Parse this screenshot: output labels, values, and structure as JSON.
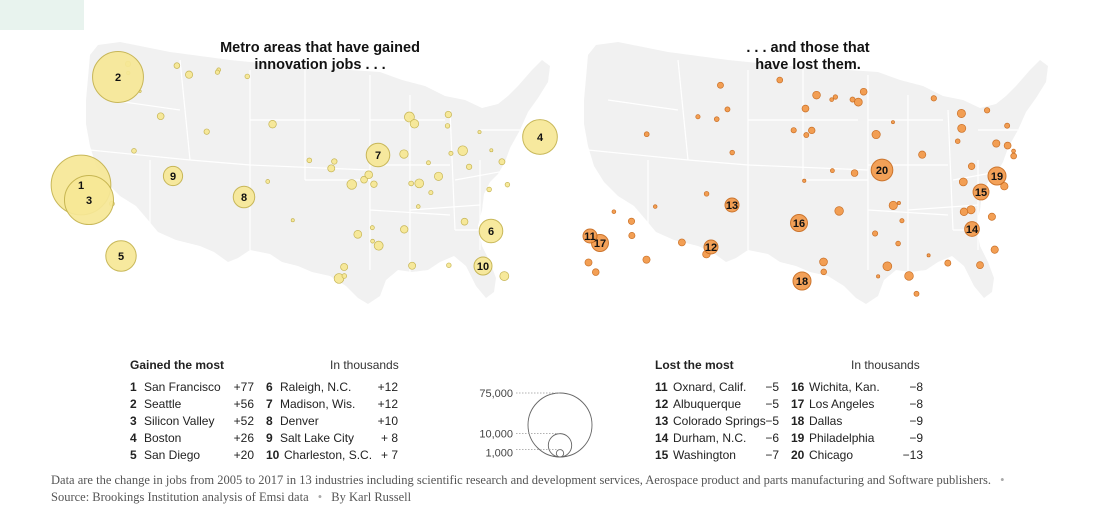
{
  "titles": {
    "gained_line1": "Metro areas that have gained",
    "gained_line2": "innovation jobs . . .",
    "lost_line1": ". . . and those that",
    "lost_line2": "have lost them."
  },
  "colors": {
    "gain_fill": "#f7e896",
    "gain_stroke": "#c4b24c",
    "loss_fill": "#f39a4b",
    "loss_stroke": "#c86a1d",
    "land": "#f1f1f1",
    "state_lines": "#ffffff"
  },
  "gained": {
    "header": "Gained the most",
    "unit": "In thousands",
    "rows": [
      {
        "rank": "1",
        "name": "San Francisco",
        "value": "+77"
      },
      {
        "rank": "2",
        "name": "Seattle",
        "value": "+56"
      },
      {
        "rank": "3",
        "name": "Silicon Valley",
        "value": "+52"
      },
      {
        "rank": "4",
        "name": "Boston",
        "value": "+26"
      },
      {
        "rank": "5",
        "name": "San Diego",
        "value": "+20"
      },
      {
        "rank": "6",
        "name": "Raleigh, N.C.",
        "value": "+12"
      },
      {
        "rank": "7",
        "name": "Madison, Wis.",
        "value": "+12"
      },
      {
        "rank": "8",
        "name": "Denver",
        "value": "+10"
      },
      {
        "rank": "9",
        "name": "Salt Lake City",
        "value": "+ 8"
      },
      {
        "rank": "10",
        "name": "Charleston, S.C.",
        "value": "+ 7"
      }
    ]
  },
  "lost": {
    "header": "Lost the most",
    "unit": "In thousands",
    "rows": [
      {
        "rank": "11",
        "name": "Oxnard, Calif.",
        "value": "−5"
      },
      {
        "rank": "12",
        "name": "Albuquerque",
        "value": "−5"
      },
      {
        "rank": "13",
        "name": "Colorado Springs",
        "value": "−5"
      },
      {
        "rank": "14",
        "name": "Durham, N.C.",
        "value": "−6"
      },
      {
        "rank": "15",
        "name": "Washington",
        "value": "−7"
      },
      {
        "rank": "16",
        "name": "Wichita, Kan.",
        "value": "−8"
      },
      {
        "rank": "17",
        "name": "Los Angeles",
        "value": "−8"
      },
      {
        "rank": "18",
        "name": "Dallas",
        "value": "−9"
      },
      {
        "rank": "19",
        "name": "Philadelphia",
        "value": "−9"
      },
      {
        "rank": "20",
        "name": "Chicago",
        "value": "−13"
      }
    ]
  },
  "legend": {
    "labels": [
      "75,000",
      "10,000",
      "1,000"
    ],
    "values": [
      75000,
      10000,
      1000
    ]
  },
  "gain_markers": [
    {
      "label": "1",
      "value": 77,
      "loc": "San Francisco"
    },
    {
      "label": "2",
      "value": 56,
      "loc": "Seattle"
    },
    {
      "label": "3",
      "value": 52,
      "loc": "Silicon Valley"
    },
    {
      "label": "4",
      "value": 26,
      "loc": "Boston"
    },
    {
      "label": "5",
      "value": 20,
      "loc": "San Diego"
    },
    {
      "label": "6",
      "value": 12,
      "loc": "Raleigh"
    },
    {
      "label": "7",
      "value": 12,
      "loc": "Madison"
    },
    {
      "label": "8",
      "value": 10,
      "loc": "Denver"
    },
    {
      "label": "9",
      "value": 8,
      "loc": "Salt Lake City"
    },
    {
      "label": "10",
      "value": 7,
      "loc": "Charleston"
    }
  ],
  "loss_markers": [
    {
      "label": "11",
      "value": 5,
      "loc": "Oxnard"
    },
    {
      "label": "12",
      "value": 5,
      "loc": "Albuquerque"
    },
    {
      "label": "13",
      "value": 5,
      "loc": "Colorado Springs"
    },
    {
      "label": "14",
      "value": 6,
      "loc": "Durham"
    },
    {
      "label": "15",
      "value": 7,
      "loc": "Washington"
    },
    {
      "label": "16",
      "value": 8,
      "loc": "Wichita"
    },
    {
      "label": "17",
      "value": 8,
      "loc": "Los Angeles"
    },
    {
      "label": "18",
      "value": 9,
      "loc": "Dallas"
    },
    {
      "label": "19",
      "value": 9,
      "loc": "Philadelphia"
    },
    {
      "label": "20",
      "value": 13,
      "loc": "Chicago"
    }
  ],
  "footer": {
    "note": "Data are the change in jobs from 2005 to 2017 in 13 industries including scientific research and development services, Aerospace product and parts manufacturing and Software publishers.",
    "source": "Source: Brookings Institution analysis of Emsi data",
    "byline": "By Karl Russell"
  }
}
